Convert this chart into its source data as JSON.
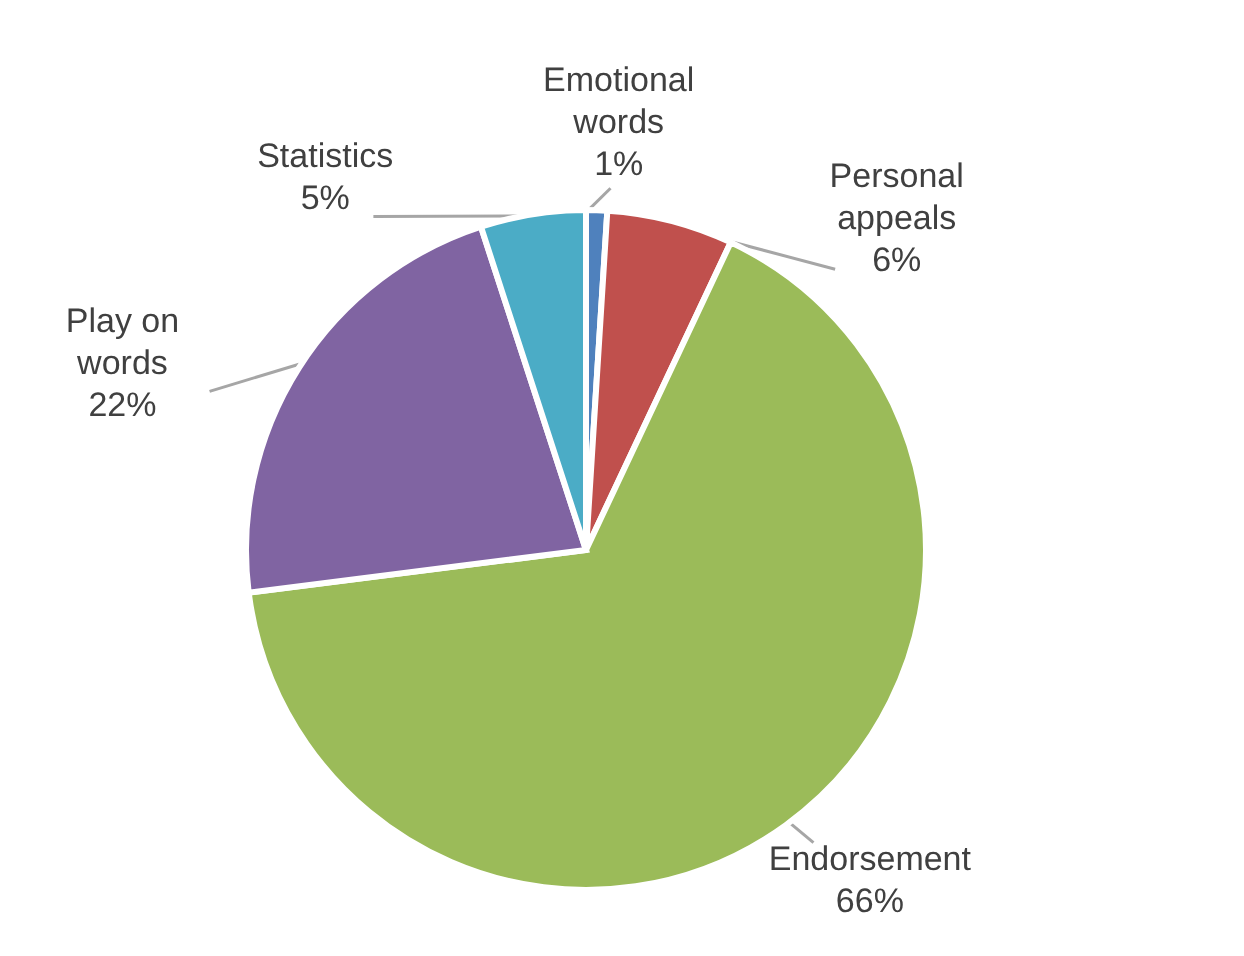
{
  "chart_data": {
    "type": "pie",
    "categories": [
      "Emotional words",
      "Personal appeals",
      "Endorsement",
      "Play on words",
      "Statistics"
    ],
    "values": [
      1,
      6,
      66,
      22,
      5
    ],
    "value_labels": [
      "1%",
      "6%",
      "66%",
      "22%",
      "5%"
    ],
    "colors": [
      "#4f81bd",
      "#c0504d",
      "#9bbb59",
      "#8064a2",
      "#4bacc6"
    ],
    "legend": false
  }
}
